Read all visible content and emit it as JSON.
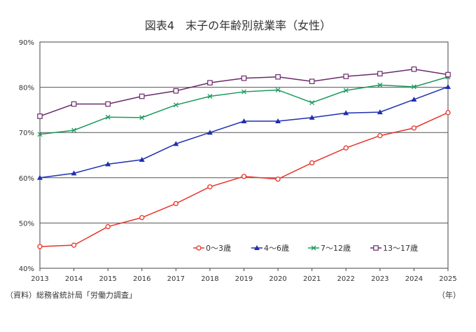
{
  "chart_data": {
    "type": "line",
    "title": "図表4　末子の年齢別就業率（女性）",
    "source": "（資料）総務省統計局「労働力調査」",
    "xlabel": "（年）",
    "ylabel": "",
    "categories": [
      "2013",
      "2014",
      "2015",
      "2016",
      "2017",
      "2018",
      "2019",
      "2020",
      "2021",
      "2022",
      "2023",
      "2024",
      "2025"
    ],
    "y_ticks": [
      "40%",
      "50%",
      "60%",
      "70%",
      "80%",
      "90%"
    ],
    "ylim": [
      40,
      90
    ],
    "grid": true,
    "legend_position": "bottom-right",
    "series": [
      {
        "name": "0～3歳",
        "color": "#e8332a",
        "marker": "circle",
        "values": [
          44.8,
          45.1,
          49.2,
          51.2,
          54.3,
          58.0,
          60.3,
          59.7,
          63.3,
          66.6,
          69.3,
          71.0,
          74.4
        ]
      },
      {
        "name": "4～6歳",
        "color": "#1f2fb0",
        "marker": "triangle",
        "values": [
          60.0,
          61.0,
          63.0,
          64.0,
          67.5,
          70.0,
          72.5,
          72.5,
          73.3,
          74.3,
          74.5,
          77.3,
          80.1
        ]
      },
      {
        "name": "7～12歳",
        "color": "#1a9a5a",
        "marker": "x",
        "values": [
          69.6,
          70.5,
          73.4,
          73.3,
          76.1,
          78.0,
          79.0,
          79.4,
          76.6,
          79.3,
          80.5,
          80.1,
          82.3
        ]
      },
      {
        "name": "13～17歳",
        "color": "#6b2a6b",
        "marker": "square",
        "values": [
          73.6,
          76.3,
          76.3,
          78.0,
          79.2,
          81.0,
          82.0,
          82.3,
          81.3,
          82.4,
          83.0,
          84.0,
          82.8
        ]
      }
    ]
  }
}
